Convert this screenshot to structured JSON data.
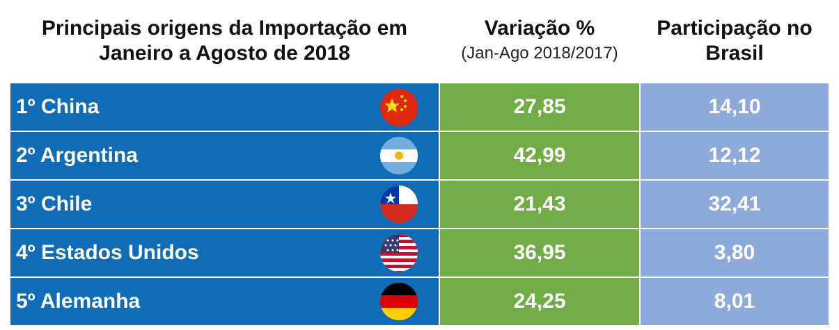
{
  "header": {
    "columns": [
      {
        "lines": [
          "Principais origens da Importação em",
          "Janeiro a Agosto de 2018"
        ]
      },
      {
        "lines": [
          "Variação %",
          "(Jan-Ago 2018/2017)"
        ]
      },
      {
        "lines": [
          "Participação no",
          "Brasil"
        ]
      }
    ]
  },
  "table": {
    "rows": [
      [
        "1º China",
        "27,85",
        "14,10"
      ],
      [
        "2º Argentina",
        "42,99",
        "12,12"
      ],
      [
        "3º Chile",
        "21,43",
        "32,41"
      ],
      [
        "4º Estados Unidos",
        "36,95",
        "3,80"
      ],
      [
        "5º Alemanha",
        "24,25",
        "8,01"
      ]
    ]
  }
}
